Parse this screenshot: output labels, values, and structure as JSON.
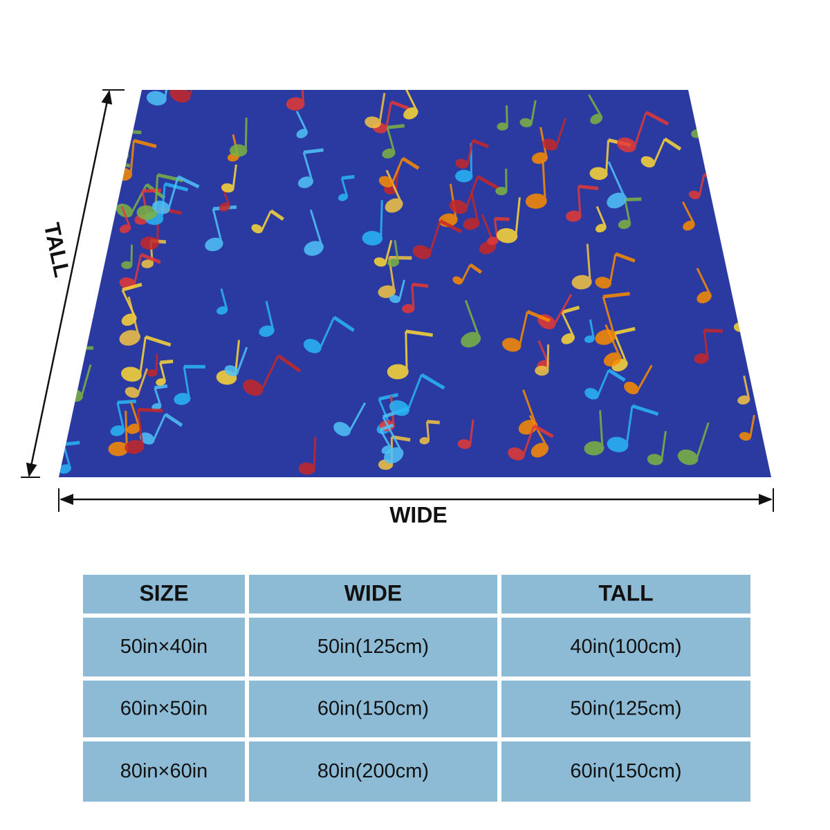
{
  "dimensions": {
    "tall_label": "TALL",
    "wide_label": "WIDE"
  },
  "table": {
    "header": [
      "SIZE",
      "WIDE",
      "TALL"
    ],
    "rows": [
      [
        "50in×40in",
        "50in(125cm)",
        "40in(100cm)"
      ],
      [
        "60in×50in",
        "60in(150cm)",
        "50in(125cm)"
      ],
      [
        "80in×60in",
        "80in(200cm)",
        "60in(150cm)"
      ]
    ]
  }
}
